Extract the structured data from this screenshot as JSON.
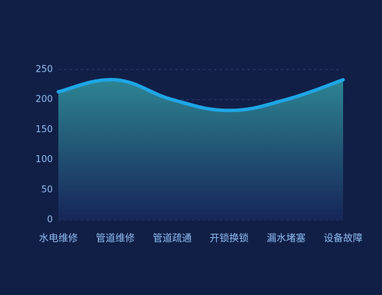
{
  "chart_data": {
    "type": "line",
    "categories": [
      "水电维修",
      "管道维修",
      "管道疏通",
      "开锁换锁",
      "漏水堵塞",
      "设备故障"
    ],
    "series": [
      {
        "values": [
          213,
          233,
          200,
          182,
          200,
          233
        ],
        "color": "#1ea6e6"
      }
    ],
    "ylim": [
      0,
      250
    ],
    "yticks": [
      0,
      50,
      100,
      150,
      200,
      250
    ],
    "grid": true,
    "area": true
  }
}
